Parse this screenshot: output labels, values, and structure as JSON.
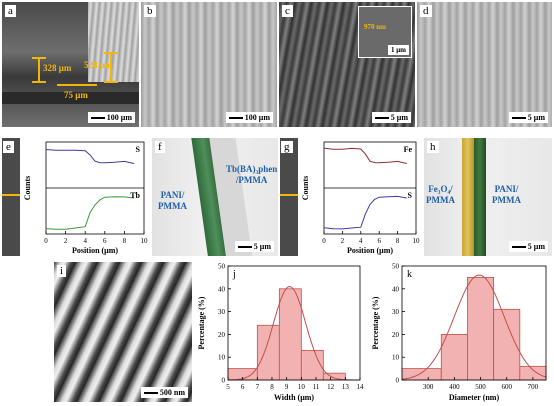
{
  "panels": {
    "a": {
      "label": "a",
      "dim_left": "328 μm",
      "dim_right": "528 μm",
      "dim_bottom": "75 μm",
      "scale": "100 μm"
    },
    "b": {
      "label": "b",
      "scale": "100 μm"
    },
    "c": {
      "label": "c",
      "inset_dim": "970 nm",
      "inset_scale": "1 μm",
      "scale": "5 μm"
    },
    "d": {
      "label": "d",
      "scale": "5 μm"
    },
    "e": {
      "label": "e",
      "ylabel": "Counts",
      "xlabel": "Position (μm)",
      "top_elem": "S",
      "bottom_elem": "Tb"
    },
    "f": {
      "label": "f",
      "left_text": "PANI/\nPMMA",
      "right_text": "Tb(BA)₃phen\n/PMMA",
      "scale": "5 μm"
    },
    "g": {
      "label": "g",
      "ylabel": "Counts",
      "xlabel": "Position (μm)",
      "top_elem": "Fe",
      "bottom_elem": "S"
    },
    "h": {
      "label": "h",
      "left_text": "Fe₃O₄/\nPMMA",
      "right_text": "PANI/\nPMMA",
      "scale": "5 μm"
    },
    "i": {
      "label": "i",
      "scale": "500 nm"
    }
  },
  "colors": {
    "annotation": "#f2b705",
    "profile_top": "#3b3b9a",
    "profile_green": "#3a9a3a",
    "profile_red": "#8a2e2e",
    "hist_fill": "#f2b2b2",
    "hist_edge": "#c0504d"
  },
  "chart_data": [
    {
      "type": "line",
      "panel": "e",
      "xlabel": "Position (μm)",
      "ylabel": "Counts",
      "xlim": [
        0,
        10
      ],
      "xticks": [
        0,
        2,
        4,
        6,
        8,
        10
      ],
      "series": [
        {
          "name": "S",
          "x": [
            0,
            1,
            2,
            3,
            4,
            4.5,
            5,
            5.5,
            6,
            7,
            8,
            9
          ],
          "y": [
            0.82,
            0.84,
            0.83,
            0.82,
            0.8,
            0.7,
            0.6,
            0.56,
            0.55,
            0.55,
            0.56,
            0.55
          ]
        },
        {
          "name": "Tb",
          "x": [
            0,
            1,
            2,
            3,
            4,
            4.5,
            5,
            5.5,
            6,
            7,
            8,
            9
          ],
          "y": [
            0.1,
            0.12,
            0.11,
            0.13,
            0.15,
            0.45,
            0.65,
            0.75,
            0.8,
            0.8,
            0.79,
            0.8
          ]
        }
      ]
    },
    {
      "type": "line",
      "panel": "g",
      "xlabel": "Position (μm)",
      "ylabel": "Counts",
      "xlim": [
        0,
        10
      ],
      "xticks": [
        0,
        2,
        4,
        6,
        8,
        10
      ],
      "series": [
        {
          "name": "Fe",
          "x": [
            0,
            1,
            2,
            3,
            4,
            4.5,
            5,
            5.5,
            6,
            7,
            8,
            9
          ],
          "y": [
            0.85,
            0.86,
            0.85,
            0.86,
            0.84,
            0.72,
            0.6,
            0.56,
            0.55,
            0.55,
            0.56,
            0.55
          ]
        },
        {
          "name": "S",
          "x": [
            0,
            1,
            2,
            3,
            4,
            4.5,
            5,
            5.5,
            6,
            7,
            8,
            9
          ],
          "y": [
            0.12,
            0.13,
            0.12,
            0.13,
            0.14,
            0.42,
            0.66,
            0.76,
            0.8,
            0.8,
            0.8,
            0.8
          ]
        }
      ]
    },
    {
      "type": "bar",
      "panel": "j",
      "title": "j",
      "xlabel": "Width (μm)",
      "ylabel": "Percentage (%)",
      "xlim": [
        5,
        14
      ],
      "ylim": [
        0,
        50
      ],
      "xticks": [
        5,
        6,
        7,
        8,
        9,
        10,
        11,
        12,
        13,
        14
      ],
      "yticks": [
        0,
        10,
        20,
        30,
        40,
        50
      ],
      "bins": [
        [
          5,
          7
        ],
        [
          7,
          8.5
        ],
        [
          8.5,
          10
        ],
        [
          10,
          11.5
        ],
        [
          11.5,
          13
        ]
      ],
      "values": [
        5,
        24,
        40,
        13,
        3
      ],
      "fit": "gaussian",
      "fit_mu": 9.2,
      "fit_sigma": 1.1,
      "fit_peak": 41
    },
    {
      "type": "bar",
      "panel": "k",
      "title": "k",
      "xlabel": "Diameter (nm)",
      "ylabel": "Percentage (%)",
      "xlim": [
        200,
        750
      ],
      "ylim": [
        0,
        50
      ],
      "xticks": [
        300,
        400,
        500,
        600,
        700
      ],
      "yticks": [
        0,
        10,
        20,
        30,
        40,
        50
      ],
      "bins": [
        [
          200,
          350
        ],
        [
          350,
          450
        ],
        [
          450,
          550
        ],
        [
          550,
          650
        ],
        [
          650,
          750
        ]
      ],
      "values": [
        5,
        20,
        45,
        31,
        6
      ],
      "fit": "gaussian",
      "fit_mu": 495,
      "fit_sigma": 95,
      "fit_peak": 46
    }
  ]
}
